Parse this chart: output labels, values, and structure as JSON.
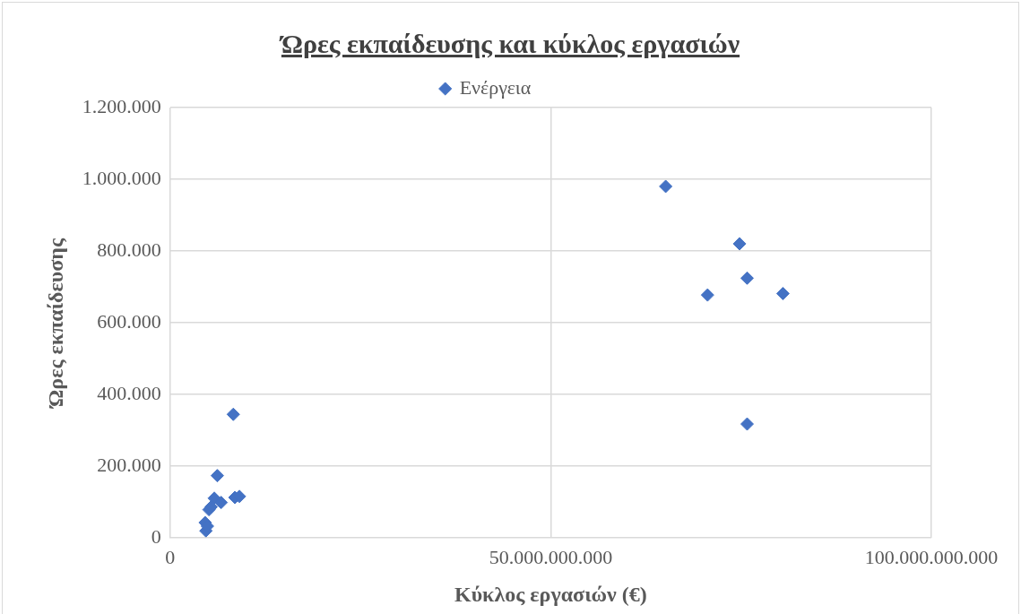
{
  "chart_data": {
    "type": "scatter",
    "title": "Ώρες εκπαίδευσης και κύκλος εργασιών",
    "xlabel": "Κύκλος εργασιών (€)",
    "ylabel": "Ώρες εκπαίδευσης",
    "series": [
      {
        "name": "Ενέργεια",
        "color": "#4472c4",
        "x": [
          65100000000,
          74800000000,
          75800000000,
          70600000000,
          80500000000,
          75800000000,
          8300000000,
          6200000000,
          8500000000,
          9100000000,
          5800000000,
          6700000000,
          5100000000,
          5400000000,
          4600000000,
          4700000000,
          4900000000
        ],
        "values": [
          980000,
          820000,
          724000,
          677000,
          681000,
          317000,
          344000,
          173000,
          112000,
          115000,
          110000,
          98000,
          78000,
          86000,
          42000,
          19000,
          32000
        ]
      }
    ],
    "xlim": [
      0,
      100000000000
    ],
    "xticks": [
      0,
      {
        "value": 50000000000,
        "label": "50.000.000.000"
      },
      {
        "value": 100000000000,
        "label": "100.000.000.000"
      }
    ],
    "ylim": [
      0,
      1200000
    ],
    "yticks": [
      0,
      {
        "value": 200000,
        "label": "200.000"
      },
      {
        "value": 400000,
        "label": "400.000"
      },
      {
        "value": 600000,
        "label": "600.000"
      },
      {
        "value": 800000,
        "label": "800.000"
      },
      {
        "value": 1000000,
        "label": "1.000.000"
      },
      {
        "value": 1200000,
        "label": "1.200.000"
      }
    ],
    "grid": true,
    "legend": "top",
    "marker": "diamond"
  }
}
